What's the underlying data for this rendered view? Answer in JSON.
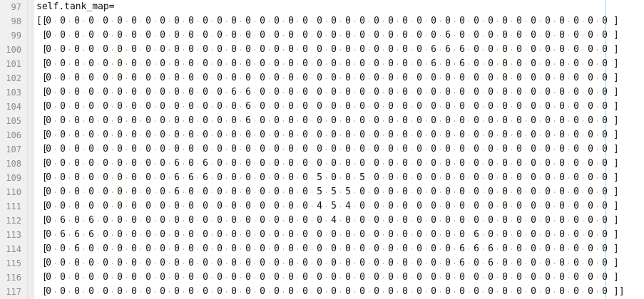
{
  "editor": {
    "header_line_number": "97",
    "header_code": "self.tank_map=",
    "first_row_line": 98,
    "rows": [
      "0000000000000000000000000000000000000000",
      "0000000000000000000000000000600000000000",
      "0000000000000000000000000006660000000000",
      "0000000000000000000000000006060000000000",
      "0000000000000000000000000000000000000000",
      "0000000000000660000000000000000000000000",
      "0000000000000060000000000000000000000000",
      "0000000000000060000000000000000000000000",
      "0000000000000000000000000000000000000000",
      "0000000000000000000000000000000000000000",
      "0000000006060000000000000000000000000000",
      "0000000006660000000500500000000000000000",
      "0000000006000000000555000000000000000000",
      "0000000000000000000454000000000000000000",
      "0606000000000000000040000000000000000000",
      "0666000000000000000000000000006000000000",
      "0060000000000000000000000000066600000000",
      "0000000000000000000000000000060600000000",
      "0000000000000000000000000000000000000000",
      "0000000000000000000000000000000000000000"
    ],
    "highlight_values": [
      "4",
      "5"
    ],
    "highlight_color": "#f0a0a0",
    "dot_color": "#e6a23c",
    "edge_color": "#9fdcf0"
  }
}
